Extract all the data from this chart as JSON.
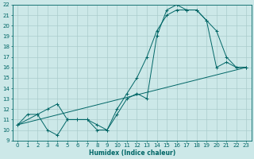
{
  "xlabel": "Humidex (Indice chaleur)",
  "bg_color": "#cce8e8",
  "grid_color": "#aacccc",
  "line_color": "#006666",
  "xlim": [
    -0.5,
    23.5
  ],
  "ylim": [
    9,
    22
  ],
  "xticks": [
    0,
    1,
    2,
    3,
    4,
    5,
    6,
    7,
    8,
    9,
    10,
    11,
    12,
    13,
    14,
    15,
    16,
    17,
    18,
    19,
    20,
    21,
    22,
    23
  ],
  "yticks": [
    9,
    10,
    11,
    12,
    13,
    14,
    15,
    16,
    17,
    18,
    19,
    20,
    21,
    22
  ],
  "line1_x": [
    0,
    1,
    2,
    3,
    4,
    5,
    6,
    7,
    8,
    9,
    10,
    11,
    12,
    13,
    14,
    15,
    16,
    17,
    18,
    19,
    20,
    21,
    22,
    23
  ],
  "line1_y": [
    10.5,
    11.5,
    11.5,
    10.0,
    9.5,
    11.0,
    11.0,
    11.0,
    10.0,
    10.0,
    12.0,
    13.5,
    15.0,
    17.0,
    19.5,
    21.0,
    21.5,
    21.5,
    21.5,
    20.5,
    19.5,
    17.0,
    16.0,
    16.0
  ],
  "line2_x": [
    0,
    2,
    3,
    4,
    5,
    6,
    7,
    8,
    9,
    10,
    11,
    12,
    13,
    14,
    15,
    16,
    17,
    18,
    19,
    20,
    21,
    22,
    23
  ],
  "line2_y": [
    10.5,
    11.5,
    12.0,
    12.5,
    11.0,
    11.0,
    11.0,
    10.5,
    10.0,
    11.5,
    13.0,
    13.5,
    13.0,
    19.0,
    21.5,
    22.0,
    21.5,
    21.5,
    20.5,
    16.0,
    16.5,
    16.0,
    16.0
  ],
  "line3_x": [
    0,
    23
  ],
  "line3_y": [
    10.5,
    16.0
  ]
}
